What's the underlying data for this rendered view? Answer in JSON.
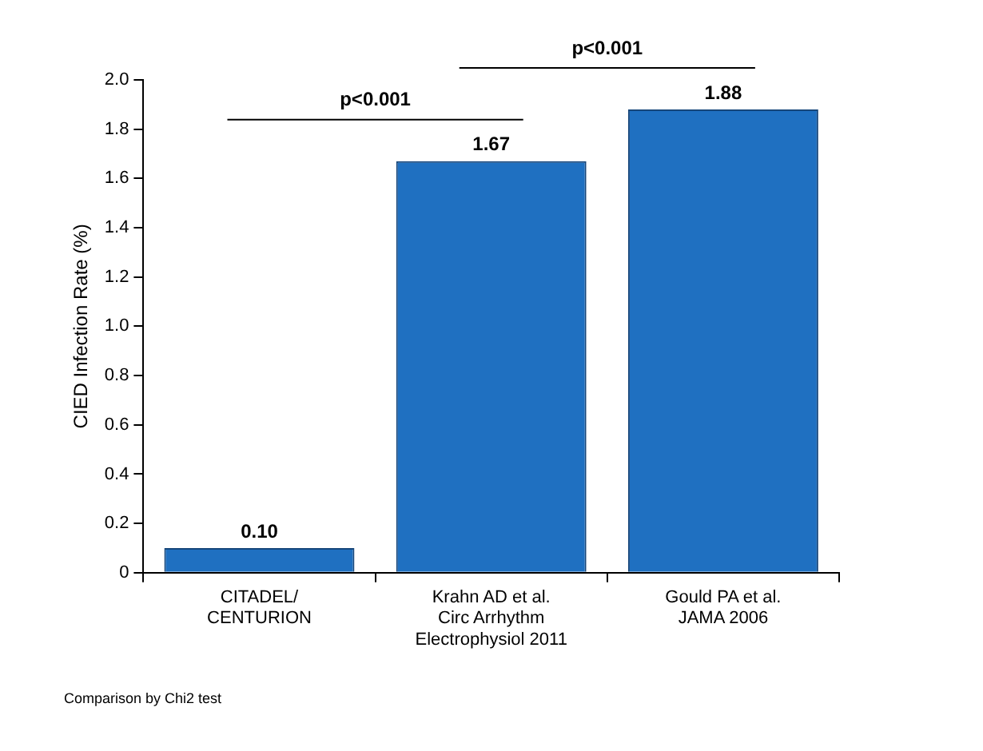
{
  "chart_data": {
    "type": "bar",
    "ylabel": "CIED Infection Rate (%)",
    "categories": [
      "CITADEL/\nCENTURION",
      "Krahn AD et al.\nCirc Arrhythm\nElectrophysiol 2011",
      "Gould PA et al.\nJAMA 2006"
    ],
    "values": [
      0.1,
      1.67,
      1.88
    ],
    "value_labels": [
      "0.10",
      "1.67",
      "1.88"
    ],
    "color": "#1f70c1",
    "ylim": [
      0,
      2
    ],
    "yticks": [
      0,
      {
        "value": 0.2,
        "label": "0.2"
      },
      {
        "value": 0.4,
        "label": "0.4"
      },
      {
        "value": 0.6,
        "label": "0.6"
      },
      {
        "value": 0.8,
        "label": "0.8"
      },
      {
        "value": 1,
        "label": "1.0"
      },
      {
        "value": 1.2,
        "label": "1.2"
      },
      {
        "value": 1.4,
        "label": "1.4"
      },
      {
        "value": 1.6,
        "label": "1.6"
      },
      {
        "value": 1.8,
        "label": "1.8"
      },
      {
        "value": 2,
        "label": "2.0"
      }
    ],
    "grid": false,
    "legend": false,
    "annotations": [
      "p<0.001",
      "p<0.001",
      "Comparison by Chi2 test"
    ]
  }
}
